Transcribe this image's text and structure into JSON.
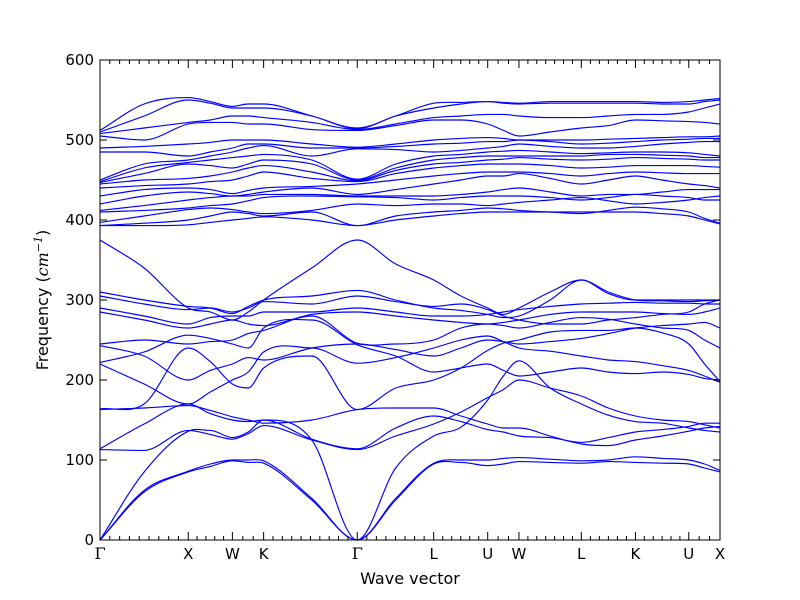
{
  "chart_data": {
    "type": "line",
    "xlabel": "Wave vector",
    "ylabel_text": "Frequency (",
    "ylabel_unit": "cm",
    "ylabel_exponent": "−1",
    "ylabel_close": ")",
    "ylim": [
      0,
      600
    ],
    "yticks": [
      0,
      100,
      200,
      300,
      400,
      500,
      600
    ],
    "line_color": "#0000ff",
    "high_symmetry_points": [
      {
        "label": "Γ",
        "x": 0.0
      },
      {
        "label": "X",
        "x": 1.0
      },
      {
        "label": "W",
        "x": 1.5
      },
      {
        "label": "K",
        "x": 1.854
      },
      {
        "label": "Γ",
        "x": 2.915
      },
      {
        "label": "L",
        "x": 3.781
      },
      {
        "label": "U",
        "x": 4.393
      },
      {
        "label": "W",
        "x": 4.747
      },
      {
        "label": "L",
        "x": 5.454
      },
      {
        "label": "K",
        "x": 6.067
      },
      {
        "label": "U",
        "x": 6.671
      },
      {
        "label": "X",
        "x": 7.025
      }
    ],
    "series_x": [
      0,
      0.5,
      1.0,
      1.25,
      1.5,
      1.68,
      1.854,
      2.4,
      2.915,
      3.35,
      3.781,
      4.09,
      4.393,
      4.57,
      4.747,
      5.1,
      5.454,
      5.76,
      6.067,
      6.37,
      6.671,
      6.85,
      7.025
    ],
    "series": [
      {
        "values": [
          0,
          60,
          85,
          92,
          99,
          97,
          96,
          50,
          0,
          50,
          95,
          97,
          93,
          95,
          98,
          97,
          96,
          98,
          97,
          96,
          95,
          90,
          85
        ]
      },
      {
        "values": [
          0,
          62,
          86,
          95,
          100,
          100,
          99,
          52,
          0,
          52,
          96,
          100,
          100,
          102,
          103,
          101,
          99,
          100,
          104,
          102,
          100,
          95,
          87
        ]
      },
      {
        "values": [
          0,
          85,
          136,
          137,
          128,
          135,
          150,
          125,
          0,
          90,
          130,
          141,
          175,
          205,
          224,
          190,
          170,
          156,
          148,
          146,
          140,
          137,
          135
        ]
      },
      {
        "values": [
          113,
          112,
          137,
          132,
          126,
          133,
          143,
          125,
          113,
          130,
          145,
          160,
          178,
          188,
          200,
          190,
          180,
          165,
          155,
          150,
          148,
          144,
          140
        ]
      },
      {
        "values": [
          114,
          145,
          170,
          158,
          150,
          148,
          150,
          126,
          114,
          140,
          155,
          148,
          138,
          135,
          130,
          128,
          122,
          128,
          135,
          138,
          142,
          146,
          146
        ]
      },
      {
        "values": [
          163,
          165,
          168,
          162,
          154,
          150,
          146,
          150,
          163,
          165,
          165,
          155,
          145,
          140,
          140,
          130,
          120,
          118,
          125,
          130,
          136,
          140,
          142
        ]
      },
      {
        "values": [
          164,
          170,
          240,
          223,
          195,
          190,
          215,
          230,
          163,
          190,
          200,
          215,
          237,
          246,
          250,
          260,
          262,
          262,
          265,
          259,
          245,
          220,
          198
        ]
      },
      {
        "values": [
          220,
          195,
          170,
          185,
          200,
          210,
          235,
          240,
          221,
          228,
          240,
          250,
          255,
          248,
          240,
          236,
          230,
          225,
          223,
          218,
          212,
          205,
          197
        ]
      },
      {
        "values": [
          222,
          235,
          256,
          252,
          245,
          240,
          265,
          275,
          244,
          230,
          210,
          215,
          220,
          212,
          205,
          210,
          215,
          210,
          208,
          210,
          207,
          202,
          200
        ]
      },
      {
        "values": [
          243,
          230,
          200,
          212,
          220,
          228,
          225,
          240,
          245,
          238,
          230,
          240,
          250,
          248,
          245,
          248,
          252,
          258,
          265,
          268,
          270,
          272,
          265
        ]
      },
      {
        "values": [
          245,
          250,
          245,
          248,
          250,
          258,
          262,
          280,
          246,
          245,
          250,
          265,
          270,
          268,
          265,
          272,
          278,
          276,
          270,
          265,
          262,
          250,
          240
        ]
      },
      {
        "values": [
          285,
          275,
          265,
          270,
          275,
          270,
          268,
          282,
          285,
          280,
          275,
          272,
          270,
          272,
          275,
          282,
          285,
          285,
          285,
          283,
          282,
          285,
          290
        ]
      },
      {
        "values": [
          290,
          280,
          270,
          278,
          280,
          280,
          285,
          285,
          290,
          285,
          280,
          280,
          282,
          285,
          288,
          292,
          295,
          296,
          297,
          296,
          296,
          295,
          295
        ]
      },
      {
        "values": [
          305,
          295,
          288,
          290,
          285,
          290,
          298,
          295,
          305,
          298,
          292,
          295,
          288,
          280,
          275,
          270,
          270,
          275,
          278,
          282,
          285,
          295,
          300
        ]
      },
      {
        "values": [
          310,
          300,
          292,
          290,
          283,
          292,
          300,
          305,
          312,
          300,
          290,
          287,
          282,
          278,
          280,
          300,
          325,
          308,
          300,
          300,
          300,
          300,
          300
        ]
      },
      {
        "values": [
          375,
          340,
          290,
          285,
          275,
          285,
          300,
          340,
          375,
          345,
          325,
          305,
          290,
          282,
          290,
          310,
          325,
          310,
          300,
          299,
          298,
          299,
          300
        ]
      },
      {
        "values": [
          393,
          393,
          394,
          397,
          400,
          402,
          404,
          400,
          393,
          400,
          405,
          408,
          410,
          410,
          410,
          410,
          410,
          410,
          410,
          408,
          405,
          400,
          395
        ]
      },
      {
        "values": [
          393,
          396,
          400,
          405,
          410,
          408,
          405,
          410,
          393,
          405,
          410,
          412,
          415,
          414,
          412,
          410,
          408,
          412,
          416,
          414,
          410,
          402,
          396
        ]
      },
      {
        "values": [
          397,
          405,
          413,
          415,
          413,
          410,
          408,
          412,
          420,
          418,
          420,
          420,
          418,
          420,
          422,
          425,
          428,
          424,
          420,
          422,
          425,
          428,
          430
        ]
      },
      {
        "values": [
          410,
          412,
          415,
          418,
          420,
          424,
          428,
          430,
          429,
          428,
          425,
          428,
          430,
          430,
          430,
          428,
          425,
          428,
          432,
          430,
          428,
          425,
          425
        ]
      },
      {
        "values": [
          412,
          418,
          425,
          428,
          430,
          430,
          432,
          432,
          430,
          430,
          430,
          432,
          435,
          438,
          440,
          435,
          430,
          432,
          432,
          435,
          438,
          438,
          438
        ]
      },
      {
        "values": [
          420,
          430,
          435,
          433,
          430,
          432,
          435,
          440,
          432,
          438,
          445,
          450,
          455,
          455,
          458,
          452,
          445,
          450,
          455,
          450,
          445,
          443,
          440
        ]
      },
      {
        "values": [
          430,
          438,
          440,
          438,
          433,
          437,
          440,
          442,
          445,
          450,
          455,
          458,
          460,
          460,
          460,
          458,
          455,
          458,
          460,
          459,
          458,
          458,
          458
        ]
      },
      {
        "values": [
          440,
          443,
          445,
          448,
          450,
          455,
          460,
          452,
          448,
          458,
          465,
          468,
          470,
          470,
          470,
          468,
          465,
          466,
          468,
          468,
          468,
          467,
          466
        ]
      },
      {
        "values": [
          445,
          450,
          452,
          455,
          460,
          465,
          468,
          460,
          449,
          462,
          470,
          472,
          475,
          476,
          478,
          476,
          475,
          476,
          478,
          477,
          476,
          475,
          475
        ]
      },
      {
        "values": [
          447,
          458,
          470,
          468,
          465,
          470,
          475,
          470,
          450,
          465,
          475,
          478,
          480,
          480,
          480,
          480,
          480,
          482,
          482,
          481,
          480,
          478,
          478
        ]
      },
      {
        "values": [
          448,
          465,
          472,
          475,
          478,
          480,
          482,
          475,
          451,
          470,
          480,
          482,
          485,
          486,
          487,
          485,
          483,
          484,
          485,
          485,
          484,
          482,
          480
        ]
      },
      {
        "values": [
          450,
          470,
          475,
          480,
          485,
          490,
          493,
          480,
          489,
          488,
          485,
          487,
          490,
          492,
          495,
          492,
          490,
          490,
          492,
          495,
          497,
          498,
          498
        ]
      },
      {
        "values": [
          485,
          485,
          480,
          485,
          490,
          495,
          495,
          490,
          490,
          492,
          495,
          496,
          498,
          498,
          500,
          498,
          495,
          496,
          498,
          500,
          501,
          502,
          502
        ]
      },
      {
        "values": [
          490,
          492,
          495,
          497,
          500,
          500,
          500,
          495,
          491,
          495,
          500,
          502,
          503,
          502,
          500,
          500,
          500,
          501,
          502,
          503,
          504,
          504,
          505
        ]
      },
      {
        "values": [
          505,
          500,
          520,
          522,
          522,
          520,
          520,
          513,
          512,
          518,
          525,
          525,
          520,
          512,
          505,
          510,
          515,
          518,
          525,
          524,
          523,
          522,
          520
        ]
      },
      {
        "values": [
          508,
          515,
          522,
          525,
          530,
          530,
          528,
          522,
          513,
          520,
          528,
          530,
          532,
          532,
          530,
          528,
          528,
          530,
          532,
          532,
          535,
          540,
          545
        ]
      },
      {
        "values": [
          510,
          530,
          550,
          546,
          540,
          540,
          540,
          530,
          514,
          530,
          540,
          545,
          548,
          546,
          545,
          546,
          546,
          546,
          546,
          545,
          545,
          548,
          550
        ]
      },
      {
        "values": [
          512,
          545,
          553,
          548,
          542,
          545,
          545,
          530,
          515,
          530,
          546,
          547,
          548,
          547,
          546,
          548,
          548,
          548,
          548,
          547,
          548,
          550,
          552
        ]
      }
    ]
  }
}
